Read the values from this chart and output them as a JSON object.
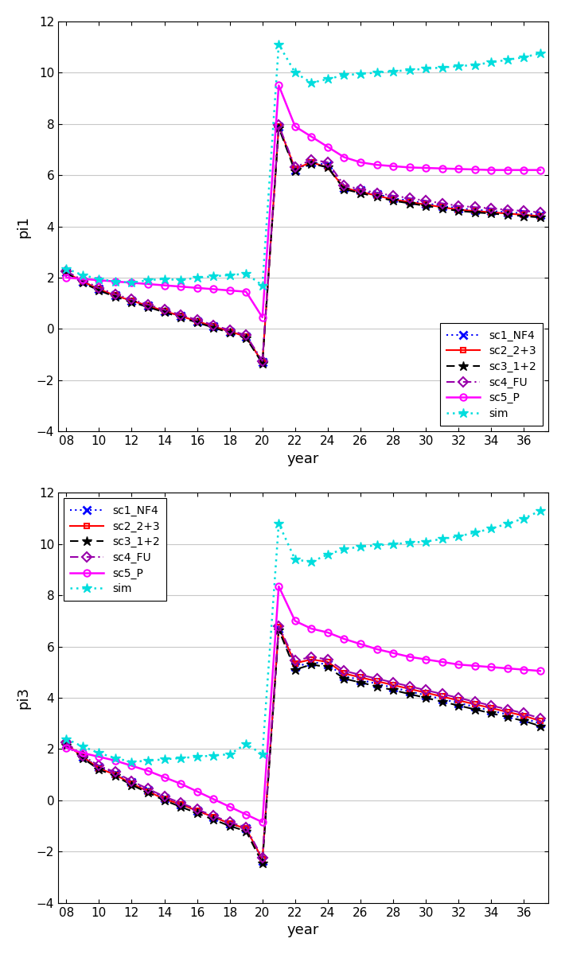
{
  "years": [
    8,
    9,
    10,
    11,
    12,
    13,
    14,
    15,
    16,
    17,
    18,
    19,
    20,
    21,
    22,
    23,
    24,
    25,
    26,
    27,
    28,
    29,
    30,
    31,
    32,
    33,
    34,
    35,
    36,
    37
  ],
  "pi1": {
    "sc1_NF4": [
      2.2,
      1.85,
      1.55,
      1.3,
      1.1,
      0.9,
      0.7,
      0.5,
      0.3,
      0.1,
      -0.1,
      -0.3,
      -1.3,
      7.9,
      6.2,
      6.5,
      6.4,
      5.5,
      5.4,
      5.25,
      5.1,
      5.0,
      4.9,
      4.8,
      4.7,
      4.65,
      4.6,
      4.55,
      4.5,
      4.45
    ],
    "sc2_2p3": [
      2.2,
      1.85,
      1.55,
      1.3,
      1.1,
      0.9,
      0.7,
      0.5,
      0.3,
      0.1,
      -0.1,
      -0.3,
      -1.3,
      7.9,
      6.25,
      6.5,
      6.3,
      5.5,
      5.35,
      5.2,
      5.05,
      4.95,
      4.85,
      4.75,
      4.65,
      4.6,
      4.55,
      4.5,
      4.45,
      4.4
    ],
    "sc3_1p2": [
      2.2,
      1.8,
      1.5,
      1.25,
      1.05,
      0.85,
      0.65,
      0.45,
      0.25,
      0.05,
      -0.15,
      -0.35,
      -1.35,
      7.85,
      6.15,
      6.45,
      6.3,
      5.45,
      5.3,
      5.15,
      5.0,
      4.9,
      4.8,
      4.7,
      4.6,
      4.55,
      4.5,
      4.45,
      4.4,
      4.35
    ],
    "sc4_FU": [
      2.25,
      1.9,
      1.6,
      1.35,
      1.15,
      0.95,
      0.75,
      0.55,
      0.35,
      0.15,
      -0.05,
      -0.25,
      -1.25,
      7.95,
      6.3,
      6.6,
      6.5,
      5.6,
      5.45,
      5.3,
      5.2,
      5.1,
      5.0,
      4.9,
      4.8,
      4.75,
      4.7,
      4.65,
      4.6,
      4.55
    ],
    "sc5_P": [
      2.0,
      1.95,
      1.9,
      1.85,
      1.8,
      1.75,
      1.7,
      1.65,
      1.6,
      1.55,
      1.5,
      1.45,
      0.45,
      9.5,
      7.9,
      7.5,
      7.1,
      6.7,
      6.5,
      6.4,
      6.35,
      6.3,
      6.28,
      6.26,
      6.24,
      6.22,
      6.2,
      6.2,
      6.2,
      6.2
    ],
    "sim": [
      2.35,
      2.1,
      1.95,
      1.85,
      1.8,
      1.9,
      1.95,
      1.9,
      2.0,
      2.05,
      2.1,
      2.15,
      1.7,
      11.1,
      10.0,
      9.6,
      9.75,
      9.9,
      9.95,
      10.0,
      10.05,
      10.1,
      10.15,
      10.2,
      10.25,
      10.3,
      10.4,
      10.5,
      10.6,
      10.75
    ]
  },
  "pi3": {
    "sc1_NF4": [
      2.2,
      1.7,
      1.3,
      1.05,
      0.7,
      0.4,
      0.1,
      -0.15,
      -0.4,
      -0.65,
      -0.9,
      -1.1,
      -2.35,
      6.7,
      5.2,
      5.4,
      5.3,
      4.85,
      4.7,
      4.55,
      4.4,
      4.25,
      4.1,
      3.95,
      3.8,
      3.65,
      3.5,
      3.35,
      3.2,
      3.0
    ],
    "sc2_2p3": [
      2.2,
      1.7,
      1.25,
      1.0,
      0.65,
      0.35,
      0.05,
      -0.15,
      -0.4,
      -0.65,
      -0.9,
      -1.1,
      -2.3,
      6.75,
      5.35,
      5.5,
      5.4,
      4.95,
      4.8,
      4.65,
      4.5,
      4.35,
      4.2,
      4.05,
      3.9,
      3.75,
      3.6,
      3.45,
      3.3,
      3.1
    ],
    "sc3_1p2": [
      2.15,
      1.65,
      1.2,
      0.95,
      0.6,
      0.3,
      0.0,
      -0.25,
      -0.5,
      -0.75,
      -1.0,
      -1.2,
      -2.45,
      6.65,
      5.1,
      5.3,
      5.2,
      4.75,
      4.6,
      4.45,
      4.3,
      4.15,
      4.0,
      3.85,
      3.7,
      3.55,
      3.4,
      3.25,
      3.1,
      2.9
    ],
    "sc4_FU": [
      2.25,
      1.75,
      1.35,
      1.1,
      0.75,
      0.45,
      0.15,
      -0.1,
      -0.35,
      -0.6,
      -0.85,
      -1.05,
      -2.25,
      6.8,
      5.45,
      5.6,
      5.5,
      5.05,
      4.9,
      4.75,
      4.6,
      4.45,
      4.3,
      4.15,
      4.0,
      3.85,
      3.7,
      3.55,
      3.4,
      3.2
    ],
    "sc5_P": [
      2.05,
      1.85,
      1.7,
      1.55,
      1.35,
      1.15,
      0.9,
      0.65,
      0.35,
      0.05,
      -0.25,
      -0.55,
      -0.85,
      8.35,
      7.0,
      6.7,
      6.55,
      6.3,
      6.1,
      5.9,
      5.75,
      5.6,
      5.5,
      5.4,
      5.3,
      5.25,
      5.2,
      5.15,
      5.1,
      5.05
    ],
    "sim": [
      2.4,
      2.1,
      1.85,
      1.65,
      1.5,
      1.55,
      1.6,
      1.65,
      1.7,
      1.75,
      1.8,
      2.2,
      1.8,
      10.8,
      9.4,
      9.3,
      9.6,
      9.8,
      9.9,
      9.95,
      10.0,
      10.05,
      10.1,
      10.2,
      10.3,
      10.45,
      10.6,
      10.8,
      11.0,
      11.3
    ]
  },
  "series_order": [
    "sc1_NF4",
    "sc2_2p3",
    "sc3_1p2",
    "sc4_FU",
    "sc5_P",
    "sim"
  ],
  "series_styles": {
    "sc1_NF4": {
      "color": "#0000FF",
      "linestyle": "dotted",
      "marker": "x",
      "markersize": 7,
      "linewidth": 1.5,
      "mfc": "none",
      "mew": 2.0
    },
    "sc2_2p3": {
      "color": "#FF0000",
      "linestyle": "solid",
      "marker": "s",
      "markersize": 5,
      "linewidth": 1.5,
      "mfc": "none",
      "mew": 1.5
    },
    "sc3_1p2": {
      "color": "#000000",
      "linestyle": "dashed",
      "marker": "*",
      "markersize": 9,
      "linewidth": 1.5,
      "mfc": "#000000",
      "mew": 1.0
    },
    "sc4_FU": {
      "color": "#9900AA",
      "linestyle": "dashdot",
      "marker": "D",
      "markersize": 6,
      "linewidth": 1.5,
      "mfc": "none",
      "mew": 1.5
    },
    "sc5_P": {
      "color": "#FF00FF",
      "linestyle": "solid",
      "marker": "o",
      "markersize": 6,
      "linewidth": 1.8,
      "mfc": "none",
      "mew": 1.5
    },
    "sim": {
      "color": "#00DDDD",
      "linestyle": "dotted",
      "marker": "*",
      "markersize": 9,
      "linewidth": 1.8,
      "mfc": "#00DDDD",
      "mew": 1.0
    }
  },
  "legend_labels": {
    "sc1_NF4": "sc1_NF4",
    "sc2_2p3": "sc2_2+3",
    "sc3_1p2": "sc3_1+2",
    "sc4_FU": "sc4_FU",
    "sc5_P": "sc5_P",
    "sim": "sim"
  },
  "ylim": [
    -4,
    12
  ],
  "yticks": [
    -4,
    -2,
    0,
    2,
    4,
    6,
    8,
    10,
    12
  ],
  "xtick_labels": [
    "08",
    "10",
    "12",
    "14",
    "16",
    "18",
    "20",
    "22",
    "24",
    "26",
    "28",
    "30",
    "32",
    "34",
    "36"
  ],
  "xtick_positions": [
    8,
    10,
    12,
    14,
    16,
    18,
    20,
    22,
    24,
    26,
    28,
    30,
    32,
    34,
    36
  ],
  "xlabel": "year",
  "ylabel_top": "pi1",
  "ylabel_bottom": "pi3",
  "bg_color": "#FFFFFF",
  "grid_color": "#C8C8C8",
  "legend_top_loc": "lower right",
  "legend_bottom_loc": "upper left"
}
